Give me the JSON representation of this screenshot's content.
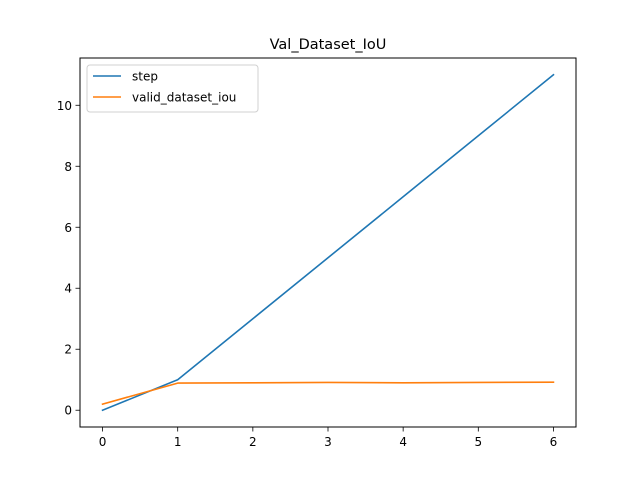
{
  "chart_data": {
    "type": "line",
    "title": "Val_Dataset_IoU",
    "xlabel": "",
    "ylabel": "",
    "x": [
      0,
      1,
      2,
      3,
      4,
      5,
      6
    ],
    "xlim": [
      -0.3,
      6.3
    ],
    "ylim": [
      -0.55,
      11.55
    ],
    "x_ticks": [
      0,
      1,
      2,
      3,
      4,
      5,
      6
    ],
    "y_ticks": [
      0,
      2,
      4,
      6,
      8,
      10
    ],
    "grid": false,
    "legend_position": "top-left",
    "series": [
      {
        "name": "step",
        "color": "#1f77b4",
        "values": [
          0,
          1,
          3,
          5,
          7,
          9,
          11
        ]
      },
      {
        "name": "valid_dataset_iou",
        "color": "#ff7f0e",
        "values": [
          0.2,
          0.89,
          0.9,
          0.91,
          0.9,
          0.91,
          0.92
        ]
      }
    ]
  }
}
